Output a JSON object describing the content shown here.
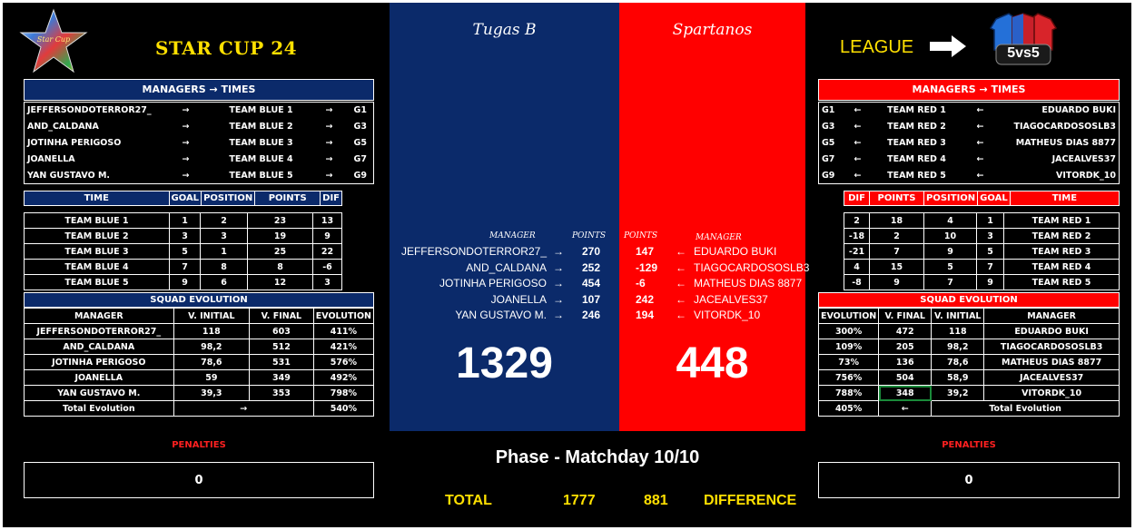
{
  "header": {
    "logo_text": "Star Cup",
    "title": "STAR CUP 24",
    "league_label": "LEAGUE",
    "badge_text": "5vs5"
  },
  "left": {
    "managers_header": "MANAGERS → TIMES",
    "managers": [
      {
        "manager": "JEFFERSONDOTERROR27_",
        "arrow": "→",
        "team": "TEAM BLUE 1",
        "arrow2": "→",
        "group": "G1"
      },
      {
        "manager": "AND_CALDANA",
        "arrow": "→",
        "team": "TEAM BLUE 2",
        "arrow2": "→",
        "group": "G3"
      },
      {
        "manager": "JOTINHA PERIGOSO",
        "arrow": "→",
        "team": "TEAM BLUE 3",
        "arrow2": "→",
        "group": "G5"
      },
      {
        "manager": "JOANELLA",
        "arrow": "→",
        "team": "TEAM BLUE 4",
        "arrow2": "→",
        "group": "G7"
      },
      {
        "manager": "YAN GUSTAVO M.",
        "arrow": "→",
        "team": "TEAM BLUE 5",
        "arrow2": "→",
        "group": "G9"
      }
    ],
    "standings_headers": [
      "TIME",
      "GOAL",
      "POSITION",
      "POINTS",
      "DIF"
    ],
    "standings": [
      [
        "TEAM BLUE 1",
        "1",
        "2",
        "23",
        "13"
      ],
      [
        "TEAM BLUE 2",
        "3",
        "3",
        "19",
        "9"
      ],
      [
        "TEAM BLUE 3",
        "5",
        "1",
        "25",
        "22"
      ],
      [
        "TEAM BLUE 4",
        "7",
        "8",
        "8",
        "-6"
      ],
      [
        "TEAM BLUE 5",
        "9",
        "6",
        "12",
        "3"
      ]
    ],
    "squad_header": "SQUAD EVOLUTION",
    "squad_headers": [
      "MANAGER",
      "V. INITIAL",
      "V. FINAL",
      "EVOLUTION"
    ],
    "squad": [
      [
        "JEFFERSONDOTERROR27_",
        "118",
        "603",
        "411%"
      ],
      [
        "AND_CALDANA",
        "98,2",
        "512",
        "421%"
      ],
      [
        "JOTINHA PERIGOSO",
        "78,6",
        "531",
        "576%"
      ],
      [
        "JOANELLA",
        "59",
        "349",
        "492%"
      ],
      [
        "YAN GUSTAVO M.",
        "39,3",
        "353",
        "798%"
      ]
    ],
    "total_label": "Total Evolution",
    "total_arrow": "→",
    "total_value": "540%",
    "penalties_label": "PENALTIES",
    "penalties_value": "0"
  },
  "right": {
    "managers_header": "MANAGERS → TIMES",
    "managers": [
      {
        "group": "G1",
        "arrow": "←",
        "team": "TEAM RED 1",
        "arrow2": "←",
        "manager": "EDUARDO BUKI"
      },
      {
        "group": "G3",
        "arrow": "←",
        "team": "TEAM RED 2",
        "arrow2": "←",
        "manager": "TIAGOCARDOSOSLB3"
      },
      {
        "group": "G5",
        "arrow": "←",
        "team": "TEAM RED 3",
        "arrow2": "←",
        "manager": "MATHEUS DIAS 8877"
      },
      {
        "group": "G7",
        "arrow": "←",
        "team": "TEAM RED 4",
        "arrow2": "←",
        "manager": "JACEALVES37"
      },
      {
        "group": "G9",
        "arrow": "←",
        "team": "TEAM RED 5",
        "arrow2": "←",
        "manager": "VITORDK_10"
      }
    ],
    "standings_headers": [
      "DIF",
      "POINTS",
      "POSITION",
      "GOAL",
      "TIME"
    ],
    "standings": [
      [
        "2",
        "18",
        "4",
        "1",
        "TEAM RED 1"
      ],
      [
        "-18",
        "2",
        "10",
        "3",
        "TEAM RED 2"
      ],
      [
        "-21",
        "7",
        "9",
        "5",
        "TEAM RED 3"
      ],
      [
        "4",
        "15",
        "5",
        "7",
        "TEAM RED 4"
      ],
      [
        "-8",
        "9",
        "7",
        "9",
        "TEAM RED 5"
      ]
    ],
    "squad_header": "SQUAD EVOLUTION",
    "squad_headers": [
      "EVOLUTION",
      "V. FINAL",
      "V. INITIAL",
      "MANAGER"
    ],
    "squad": [
      [
        "300%",
        "472",
        "118",
        "EDUARDO BUKI"
      ],
      [
        "109%",
        "205",
        "98,2",
        "TIAGOCARDOSOSLB3"
      ],
      [
        "73%",
        "136",
        "78,6",
        "MATHEUS DIAS 8877"
      ],
      [
        "756%",
        "504",
        "58,9",
        "JACEALVES37"
      ],
      [
        "788%",
        "348",
        "39,2",
        "VITORDK_10"
      ]
    ],
    "total_value": "405%",
    "total_arrow": "←",
    "total_label": "Total Evolution",
    "penalties_label": "PENALTIES",
    "penalties_value": "0"
  },
  "center": {
    "team_blue": "Tugas B",
    "team_red": "Spartanos",
    "col_manager_blue": "MANAGER",
    "col_points_blue": "POINTS",
    "col_points_red": "POINTS",
    "col_manager_red": "MANAGER",
    "blue_rows": [
      {
        "manager": "JEFFERSONDOTERROR27_",
        "arrow": "→",
        "points": "270"
      },
      {
        "manager": "AND_CALDANA",
        "arrow": "→",
        "points": "252"
      },
      {
        "manager": "JOTINHA PERIGOSO",
        "arrow": "→",
        "points": "454"
      },
      {
        "manager": "JOANELLA",
        "arrow": "→",
        "points": "107"
      },
      {
        "manager": "YAN GUSTAVO M.",
        "arrow": "→",
        "points": "246"
      }
    ],
    "red_rows": [
      {
        "points": "147",
        "arrow": "←",
        "manager": "EDUARDO BUKI"
      },
      {
        "points": "-129",
        "arrow": "←",
        "manager": "TIAGOCARDOSOSLB3"
      },
      {
        "points": "-6",
        "arrow": "←",
        "manager": "MATHEUS DIAS 8877"
      },
      {
        "points": "242",
        "arrow": "←",
        "manager": "JACEALVES37"
      },
      {
        "points": "194",
        "arrow": "←",
        "manager": "VITORDK_10"
      }
    ],
    "score_blue": "1329",
    "score_red": "448",
    "phase": "Phase - Matchday 10/10",
    "total_label": "TOTAL",
    "total_blue": "1777",
    "total_red": "881",
    "difference_label": "DIFFERENCE"
  },
  "colors": {
    "blue": "#0b2a6a",
    "red": "#ff0000",
    "yellow": "#ffe000"
  }
}
